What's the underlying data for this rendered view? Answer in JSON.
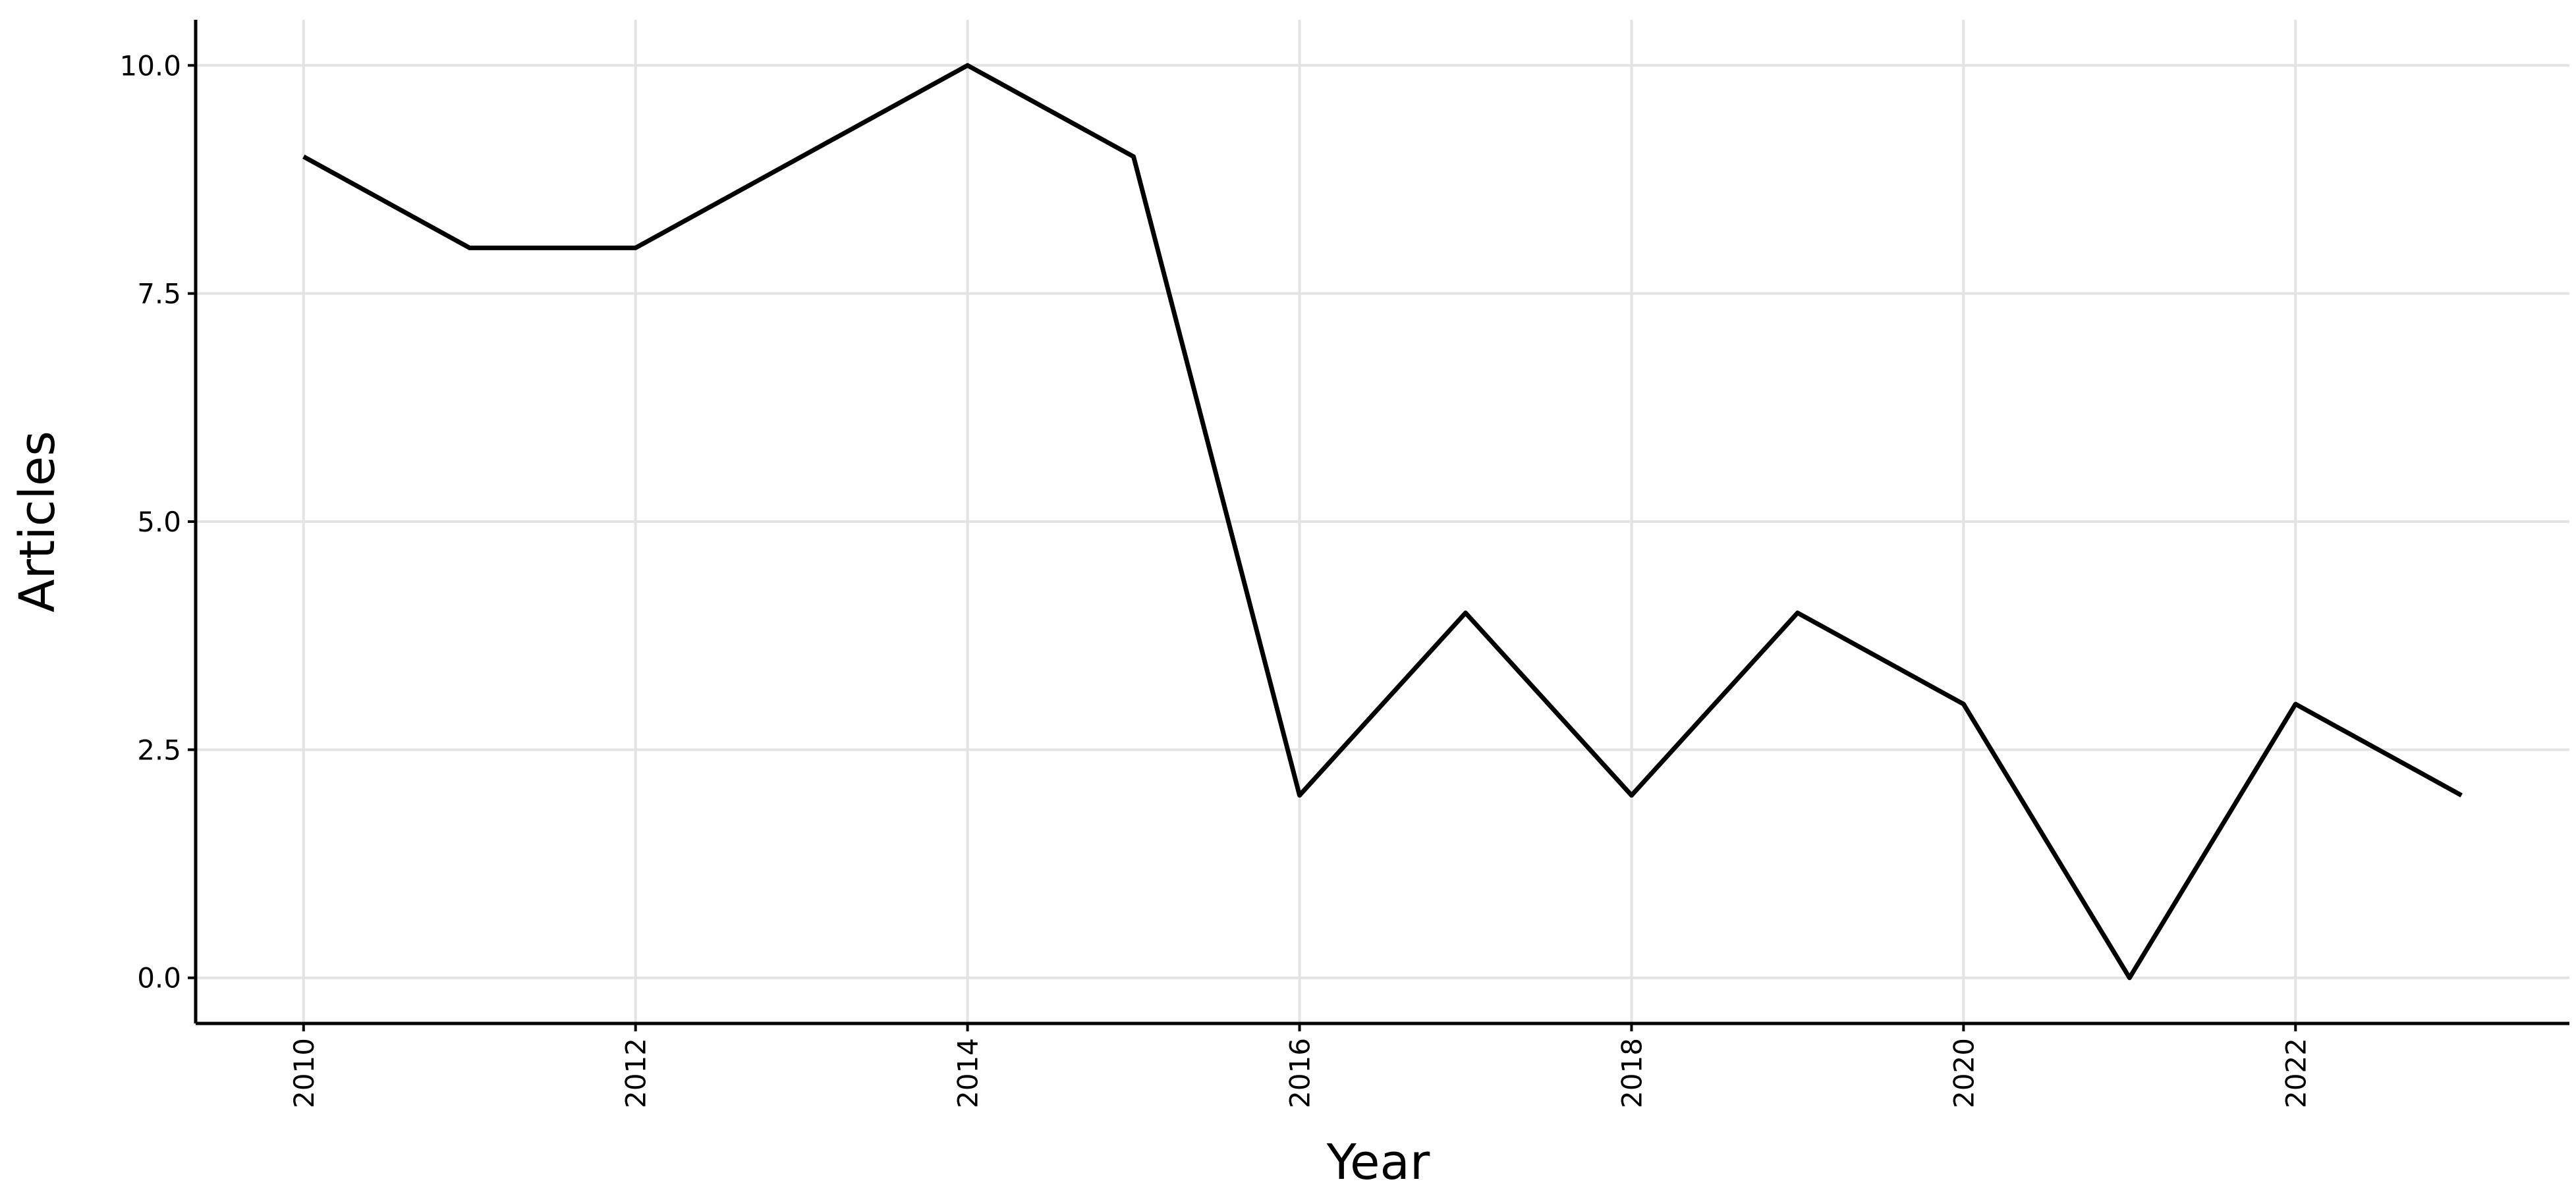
{
  "chart_data": {
    "type": "line",
    "x": [
      2010,
      2011,
      2012,
      2013,
      2014,
      2015,
      2016,
      2017,
      2018,
      2019,
      2020,
      2021,
      2022,
      2023
    ],
    "series": [
      {
        "values": [
          9,
          8,
          8,
          9,
          10,
          9,
          2,
          4,
          2,
          4,
          3,
          0,
          3,
          2
        ],
        "color": "#000000"
      }
    ],
    "x_label": "Year",
    "y_label": "Articles",
    "xlim": [
      2009.35,
      2023.65
    ],
    "xticks": [
      2010,
      2012,
      2014,
      2016,
      2018,
      2020,
      2022
    ],
    "ylim": [
      -0.5,
      10.5
    ],
    "yticks": [
      {
        "value": 0,
        "label": "0.0"
      },
      2.5,
      {
        "value": 5,
        "label": "5.0"
      },
      7.5,
      {
        "value": 10,
        "label": "10.0"
      }
    ],
    "grid": true
  }
}
